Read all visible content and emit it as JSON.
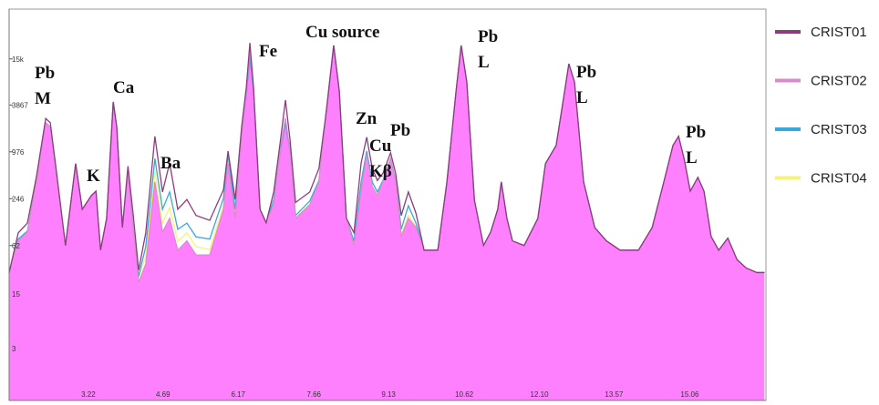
{
  "chart_data": {
    "type": "spectrum",
    "log_scale_y": true,
    "xlim": [
      1.66,
      16.56
    ],
    "ylim": [
      0.65,
      65000
    ],
    "xticks": [
      3.22,
      4.69,
      6.17,
      7.66,
      9.13,
      10.62,
      {
        "value": 12.1,
        "label": "12.10"
      },
      13.57,
      15.06
    ],
    "yticks": [
      3,
      15,
      62,
      246,
      976,
      3867,
      {
        "value": 15000,
        "label": "15k"
      }
    ],
    "legend": "right",
    "annotations": [
      [
        "Pb",
        "M"
      ],
      [
        "Ca"
      ],
      [
        "K"
      ],
      [
        "Ba"
      ],
      [
        "Fe"
      ],
      [
        "Cu source"
      ],
      [
        "Zn"
      ],
      [
        "Cu",
        "Kβ"
      ],
      [
        "Pb"
      ],
      [
        "Pb",
        "L"
      ],
      [
        "Pb",
        "L"
      ],
      [
        "Pb",
        "L"
      ]
    ],
    "x": [
      1.66,
      1.84,
      2.02,
      2.2,
      2.38,
      2.47,
      2.59,
      2.77,
      2.97,
      3.1,
      3.28,
      3.37,
      3.46,
      3.58,
      3.71,
      3.78,
      3.89,
      4.0,
      4.1,
      4.21,
      4.35,
      4.53,
      4.68,
      4.82,
      4.98,
      5.16,
      5.34,
      5.61,
      5.88,
      5.97,
      6.11,
      6.24,
      6.33,
      6.4,
      6.47,
      6.6,
      6.72,
      6.87,
      7.01,
      7.1,
      7.19,
      7.3,
      7.58,
      7.76,
      7.91,
      8.05,
      8.16,
      8.3,
      8.45,
      8.59,
      8.7,
      8.81,
      8.91,
      9.02,
      9.17,
      9.27,
      9.38,
      9.52,
      9.67,
      9.83,
      10.1,
      10.28,
      10.46,
      10.56,
      10.67,
      10.82,
      11.0,
      11.14,
      11.28,
      11.35,
      11.46,
      11.57,
      11.8,
      12.07,
      12.22,
      12.43,
      12.57,
      12.68,
      12.79,
      12.97,
      13.19,
      13.42,
      13.69,
      14.05,
      14.32,
      14.55,
      14.73,
      14.84,
      14.95,
      15.07,
      15.22,
      15.34,
      15.48,
      15.63,
      15.81,
      15.99,
      16.17,
      16.38,
      16.53
    ],
    "series": [
      {
        "name": "CRIST01",
        "color": "#8e3a80",
        "values": [
          28,
          90,
          120,
          480,
          2600,
          2300,
          560,
          62,
          690,
          180,
          270,
          307,
          54,
          138,
          4240,
          2010,
          105,
          640,
          160,
          30,
          90,
          1540,
          300,
          700,
          180,
          240,
          150,
          130,
          320,
          1000,
          240,
          2100,
          6500,
          24000,
          6700,
          180,
          121,
          300,
          1500,
          4470,
          1400,
          220,
          300,
          600,
          3430,
          22300,
          5850,
          138,
          90,
          700,
          1500,
          600,
          420,
          520,
          950,
          520,
          150,
          300,
          160,
          54,
          54,
          403,
          5850,
          22300,
          7640,
          236,
          62,
          92,
          180,
          403,
          138,
          71,
          62,
          138,
          690,
          1180,
          4470,
          13000,
          7640,
          403,
          105,
          71,
          54,
          54,
          105,
          403,
          1180,
          1540,
          790,
          307,
          460,
          307,
          81,
          54,
          77,
          41,
          32,
          28,
          28
        ]
      },
      {
        "name": "CRIST02",
        "color": "#d98ccc",
        "fill": "#ff80ff",
        "values": [
          28,
          71,
          92,
          403,
          2300,
          2010,
          460,
          62,
          690,
          180,
          270,
          307,
          54,
          138,
          4240,
          2010,
          105,
          527,
          105,
          21,
          36,
          403,
          92,
          138,
          54,
          71,
          47,
          47,
          180,
          690,
          138,
          1540,
          5850,
          19500,
          6700,
          180,
          121,
          206,
          1180,
          2630,
          1030,
          138,
          206,
          403,
          3430,
          22300,
          5850,
          138,
          62,
          307,
          900,
          352,
          270,
          403,
          790,
          403,
          81,
          138,
          105,
          54,
          54,
          403,
          5850,
          22300,
          7640,
          236,
          62,
          92,
          180,
          403,
          138,
          71,
          62,
          138,
          690,
          1180,
          4470,
          13000,
          7640,
          403,
          105,
          71,
          54,
          54,
          105,
          403,
          1180,
          1540,
          790,
          307,
          460,
          307,
          81,
          54,
          77,
          41,
          32,
          28,
          28
        ]
      },
      {
        "name": "CRIST03",
        "color": "#3aa7dc",
        "values": [
          28,
          75,
          95,
          420,
          2300,
          2010,
          470,
          62,
          690,
          180,
          270,
          307,
          54,
          138,
          4240,
          2010,
          105,
          527,
          105,
          25,
          60,
          800,
          180,
          300,
          100,
          120,
          80,
          75,
          250,
          900,
          180,
          1700,
          5500,
          16000,
          6000,
          180,
          121,
          240,
          1100,
          2300,
          1000,
          150,
          230,
          420,
          3430,
          22300,
          5850,
          138,
          70,
          400,
          1000,
          400,
          300,
          420,
          800,
          420,
          100,
          200,
          120,
          54,
          54,
          403,
          5850,
          22300,
          7640,
          236,
          62,
          92,
          180,
          403,
          138,
          71,
          62,
          138,
          690,
          1180,
          4470,
          13000,
          7640,
          403,
          105,
          71,
          54,
          54,
          105,
          403,
          1180,
          1540,
          790,
          307,
          460,
          307,
          81,
          54,
          77,
          41,
          32,
          28,
          28
        ]
      },
      {
        "name": "CRIST04",
        "color": "#f7f27a",
        "values": [
          28,
          71,
          92,
          403,
          2300,
          2010,
          460,
          62,
          690,
          180,
          270,
          307,
          54,
          138,
          4240,
          2010,
          105,
          527,
          105,
          24,
          45,
          550,
          120,
          190,
          70,
          90,
          60,
          55,
          200,
          750,
          150,
          1600,
          5800,
          19000,
          6600,
          180,
          121,
          210,
          1150,
          2500,
          1000,
          140,
          210,
          403,
          3430,
          22300,
          5850,
          138,
          65,
          330,
          880,
          352,
          270,
          403,
          790,
          403,
          85,
          150,
          110,
          54,
          54,
          403,
          5850,
          22300,
          7640,
          236,
          62,
          92,
          180,
          403,
          138,
          71,
          62,
          138,
          690,
          1180,
          4470,
          13000,
          7640,
          403,
          105,
          71,
          54,
          54,
          105,
          403,
          1180,
          1540,
          790,
          307,
          460,
          307,
          81,
          54,
          77,
          41,
          32,
          28,
          28
        ]
      }
    ]
  }
}
